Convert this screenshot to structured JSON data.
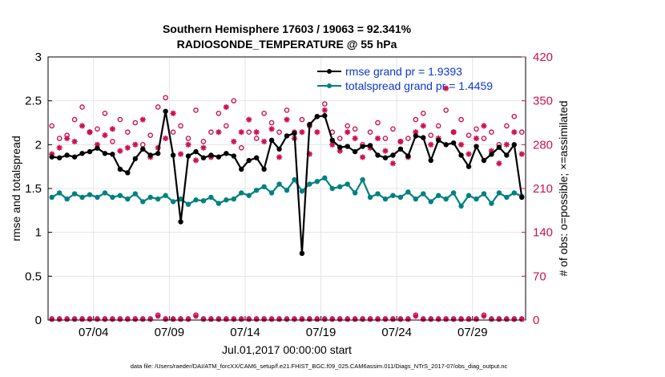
{
  "chart_data": {
    "type": "line",
    "title_line1": "Southern Hemisphere 17603 / 19063 = 92.341%",
    "title_line2": "RADIOSONDE_TEMPERATURE @ 55 hPa",
    "xlabel": "Jul.01,2017 00:00:00 start",
    "ylabel_left": "rmse and totalspread",
    "ylabel_right": "# of obs: o=possible; ×=assimilated",
    "xlim": [
      0,
      31.5
    ],
    "ylim_left": [
      0,
      3
    ],
    "ylim_right": [
      0,
      420
    ],
    "x_ticks": [
      3,
      8,
      13,
      18,
      23,
      28
    ],
    "x_tick_labels": [
      "07/04",
      "07/09",
      "07/14",
      "07/19",
      "07/24",
      "07/29"
    ],
    "y_ticks_left": [
      0,
      0.5,
      1,
      1.5,
      2,
      2.5,
      3
    ],
    "y_tick_labels_left": [
      "0",
      "0.5",
      "1",
      "1.5",
      "2",
      "2.5",
      "3"
    ],
    "y_ticks_right": [
      0,
      70,
      140,
      210,
      280,
      350,
      420
    ],
    "y_tick_labels_right": [
      "0",
      "70",
      "140",
      "210",
      "280",
      "350",
      "420"
    ],
    "footer": "data file: /Users/raeder/DAI/ATM_forcXX/CAM6_setup/f.e21.FHIST_BGC.f09_025.CAM6assim.011/Diags_NTrS_2017-07/obs_diag_output.nc",
    "colors": {
      "rmse": "#000000",
      "spread": "#008080",
      "obs": "#cc1155",
      "legend_text": "#0b36d6",
      "grid": "#e4e4e4"
    },
    "legend": [
      {
        "name": "rmse",
        "label": "rmse grand pr = 1.9393"
      },
      {
        "name": "spread",
        "label": "totalspread grand pr = 1.4459"
      }
    ],
    "series": [
      {
        "name": "rmse",
        "axis": "left",
        "x": [
          0.25,
          0.75,
          1.25,
          1.75,
          2.25,
          2.75,
          3.25,
          3.75,
          4.25,
          4.75,
          5.25,
          5.75,
          6.25,
          6.75,
          7.25,
          7.75,
          8.25,
          8.75,
          9.25,
          9.75,
          10.25,
          10.75,
          11.25,
          11.75,
          12.25,
          12.75,
          13.25,
          13.75,
          14.25,
          14.75,
          15.25,
          15.75,
          16.25,
          16.75,
          17.25,
          17.75,
          18.25,
          18.75,
          19.25,
          19.75,
          20.25,
          20.75,
          21.25,
          21.75,
          22.25,
          22.75,
          23.25,
          23.75,
          24.25,
          24.75,
          25.25,
          25.75,
          26.25,
          26.75,
          27.25,
          27.75,
          28.25,
          28.75,
          29.25,
          29.75,
          30.25,
          30.75,
          31.25
        ],
        "values": [
          1.86,
          1.85,
          1.88,
          1.86,
          1.9,
          1.92,
          1.96,
          1.9,
          1.89,
          1.72,
          1.68,
          1.84,
          1.95,
          1.88,
          1.9,
          2.38,
          1.88,
          1.12,
          1.87,
          1.92,
          1.85,
          1.88,
          1.86,
          1.9,
          1.87,
          1.72,
          1.82,
          1.85,
          1.72,
          2.05,
          1.95,
          2.1,
          2.13,
          0.76,
          2.23,
          2.32,
          2.33,
          2.05,
          1.97,
          1.98,
          1.92,
          1.98,
          1.99,
          1.88,
          1.85,
          1.88,
          1.95,
          1.87,
          2.1,
          2.08,
          1.82,
          2.05,
          2.0,
          2.02,
          1.88,
          1.75,
          1.98,
          1.82,
          1.89,
          1.97,
          1.88,
          2.0,
          1.4
        ]
      },
      {
        "name": "totalspread",
        "axis": "left",
        "x": [
          0.25,
          0.75,
          1.25,
          1.75,
          2.25,
          2.75,
          3.25,
          3.75,
          4.25,
          4.75,
          5.25,
          5.75,
          6.25,
          6.75,
          7.25,
          7.75,
          8.25,
          8.75,
          9.25,
          9.75,
          10.25,
          10.75,
          11.25,
          11.75,
          12.25,
          12.75,
          13.25,
          13.75,
          14.25,
          14.75,
          15.25,
          15.75,
          16.25,
          16.75,
          17.25,
          17.75,
          18.25,
          18.75,
          19.25,
          19.75,
          20.25,
          20.75,
          21.25,
          21.75,
          22.25,
          22.75,
          23.25,
          23.75,
          24.25,
          24.75,
          25.25,
          25.75,
          26.25,
          26.75,
          27.25,
          27.75,
          28.25,
          28.75,
          29.25,
          29.75,
          30.25,
          30.75,
          31.25
        ],
        "values": [
          1.4,
          1.45,
          1.38,
          1.44,
          1.4,
          1.43,
          1.4,
          1.45,
          1.4,
          1.42,
          1.38,
          1.44,
          1.35,
          1.4,
          1.38,
          1.42,
          1.35,
          1.38,
          1.32,
          1.37,
          1.36,
          1.4,
          1.33,
          1.37,
          1.38,
          1.45,
          1.42,
          1.48,
          1.52,
          1.45,
          1.55,
          1.48,
          1.6,
          1.47,
          1.55,
          1.58,
          1.62,
          1.5,
          1.52,
          1.55,
          1.45,
          1.6,
          1.4,
          1.44,
          1.38,
          1.42,
          1.4,
          1.46,
          1.38,
          1.44,
          1.35,
          1.42,
          1.38,
          1.45,
          1.3,
          1.42,
          1.38,
          1.44,
          1.33,
          1.45,
          1.4,
          1.45,
          1.41
        ]
      },
      {
        "name": "possible",
        "axis": "right",
        "x": [
          0.25,
          0.75,
          1.25,
          1.75,
          2.25,
          2.75,
          3.25,
          3.75,
          4.25,
          4.75,
          5.25,
          5.75,
          6.25,
          6.75,
          7.25,
          7.75,
          8.25,
          8.75,
          9.25,
          9.75,
          10.25,
          10.75,
          11.25,
          11.75,
          12.25,
          12.75,
          13.25,
          13.75,
          14.25,
          14.75,
          15.25,
          15.75,
          16.25,
          16.75,
          17.25,
          17.75,
          18.25,
          18.75,
          19.25,
          19.75,
          20.25,
          20.75,
          21.25,
          21.75,
          22.25,
          22.75,
          23.25,
          23.75,
          24.25,
          24.75,
          25.25,
          25.75,
          26.25,
          26.75,
          27.25,
          27.75,
          28.25,
          28.75,
          29.25,
          29.75,
          30.25,
          30.75,
          31.25
        ],
        "values": [
          310,
          290,
          295,
          320,
          340,
          300,
          305,
          330,
          285,
          320,
          300,
          315,
          280,
          295,
          340,
          355,
          300,
          310,
          290,
          335,
          285,
          300,
          330,
          310,
          350,
          275,
          300,
          290,
          330,
          315,
          300,
          335,
          300,
          320,
          310,
          325,
          345,
          300,
          290,
          310,
          305,
          280,
          300,
          315,
          290,
          305,
          285,
          290,
          320,
          330,
          295,
          310,
          335,
          300,
          320,
          295,
          305,
          290,
          300,
          280,
          310,
          325,
          300
        ]
      },
      {
        "name": "assimilated",
        "axis": "right",
        "x": [
          0.25,
          0.75,
          1.25,
          1.75,
          2.25,
          2.75,
          3.25,
          3.75,
          4.25,
          4.75,
          5.25,
          5.75,
          6.25,
          6.75,
          7.25,
          7.75,
          8.25,
          8.75,
          9.25,
          9.75,
          10.25,
          10.75,
          11.25,
          11.75,
          12.25,
          12.75,
          13.25,
          13.75,
          14.25,
          14.75,
          15.25,
          15.75,
          16.25,
          16.75,
          17.25,
          17.75,
          18.25,
          18.75,
          19.25,
          19.75,
          20.25,
          20.75,
          21.25,
          21.75,
          22.25,
          22.75,
          23.25,
          23.75,
          24.25,
          24.75,
          25.25,
          25.75,
          26.25,
          26.75,
          27.25,
          27.75,
          28.25,
          28.75,
          29.25,
          29.75,
          30.25,
          30.75,
          31.25
        ],
        "values": [
          265,
          275,
          290,
          285,
          310,
          300,
          280,
          295,
          305,
          270,
          275,
          280,
          320,
          260,
          275,
          290,
          330,
          265,
          280,
          255,
          275,
          260,
          300,
          340,
          285,
          300,
          320,
          300,
          285,
          305,
          260,
          320,
          290,
          300,
          265,
          300,
          335,
          280,
          270,
          300,
          290,
          260,
          275,
          290,
          270,
          250,
          285,
          260,
          300,
          310,
          280,
          290,
          370,
          300,
          280,
          265,
          290,
          310,
          270,
          250,
          280,
          300,
          265
        ]
      },
      {
        "name": "possible_baseline",
        "axis": "right",
        "x": [
          0.25,
          0.75,
          1.25,
          1.75,
          2.25,
          2.75,
          3.25,
          3.75,
          4.25,
          4.75,
          5.25,
          5.75,
          6.25,
          6.75,
          7.25,
          7.75,
          8.25,
          8.75,
          9.25,
          9.75,
          10.25,
          10.75,
          11.25,
          11.75,
          12.25,
          12.75,
          13.25,
          13.75,
          14.25,
          14.75,
          15.25,
          15.75,
          16.25,
          16.75,
          17.25,
          17.75,
          18.25,
          18.75,
          19.25,
          19.75,
          20.25,
          20.75,
          21.25,
          21.75,
          22.25,
          22.75,
          23.25,
          23.75,
          24.25,
          24.75,
          25.25,
          25.75,
          26.25,
          26.75,
          27.25,
          27.75,
          28.25,
          28.75,
          29.25,
          29.75,
          30.25,
          30.75,
          31.25
        ],
        "values": [
          2,
          2,
          2,
          2,
          2,
          2,
          2,
          2,
          2,
          2,
          2,
          2,
          2,
          2,
          8,
          2,
          2,
          2,
          2,
          8,
          2,
          2,
          2,
          2,
          2,
          2,
          2,
          2,
          2,
          2,
          2,
          2,
          2,
          2,
          2,
          2,
          2,
          2,
          2,
          2,
          2,
          2,
          2,
          2,
          2,
          2,
          2,
          2,
          8,
          2,
          2,
          2,
          2,
          2,
          2,
          2,
          2,
          8,
          2,
          2,
          2,
          2,
          2
        ]
      },
      {
        "name": "assimilated_baseline",
        "axis": "right",
        "x": [
          0.25,
          0.75,
          1.25,
          1.75,
          2.25,
          2.75,
          3.25,
          3.75,
          4.25,
          4.75,
          5.25,
          5.75,
          6.25,
          6.75,
          7.25,
          7.75,
          8.25,
          8.75,
          9.25,
          9.75,
          10.25,
          10.75,
          11.25,
          11.75,
          12.25,
          12.75,
          13.25,
          13.75,
          14.25,
          14.75,
          15.25,
          15.75,
          16.25,
          16.75,
          17.25,
          17.75,
          18.25,
          18.75,
          19.25,
          19.75,
          20.25,
          20.75,
          21.25,
          21.75,
          22.25,
          22.75,
          23.25,
          23.75,
          24.25,
          24.75,
          25.25,
          25.75,
          26.25,
          26.75,
          27.25,
          27.75,
          28.25,
          28.75,
          29.25,
          29.75,
          30.25,
          30.75,
          31.25
        ],
        "values": [
          1,
          1,
          1,
          1,
          1,
          1,
          1,
          1,
          1,
          1,
          1,
          1,
          1,
          1,
          6,
          1,
          1,
          1,
          1,
          6,
          1,
          1,
          1,
          1,
          1,
          1,
          1,
          1,
          1,
          1,
          1,
          1,
          1,
          1,
          1,
          1,
          1,
          1,
          1,
          1,
          1,
          1,
          1,
          1,
          1,
          1,
          1,
          1,
          6,
          1,
          1,
          1,
          1,
          1,
          1,
          1,
          1,
          6,
          1,
          1,
          1,
          1,
          1
        ]
      }
    ]
  }
}
